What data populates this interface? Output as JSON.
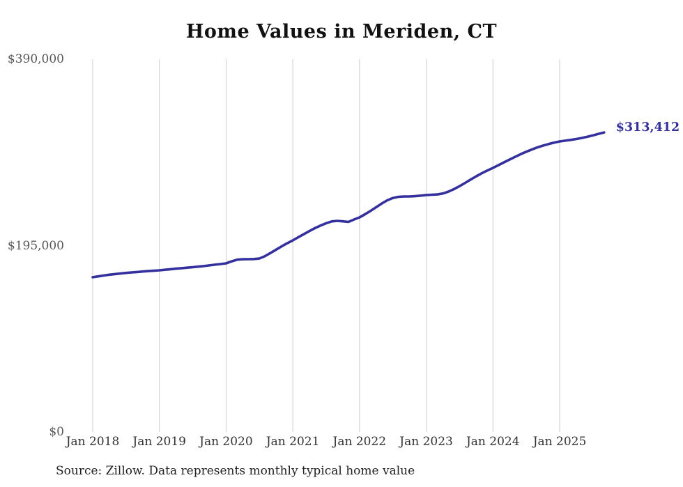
{
  "page": {
    "background": "#ffffff"
  },
  "colors": {
    "line": "#34309D",
    "grid": "#cccccc",
    "title": "#111111",
    "x_axis_text": "#333333",
    "y_axis_text": "#565656",
    "end_label": "#34309D",
    "source_text": "#222222"
  },
  "chart_data": {
    "type": "line",
    "title": "Home Values in Meriden, CT",
    "xlabel": "",
    "ylabel": "",
    "ylim": [
      0,
      390000
    ],
    "grid": "vertical-only",
    "legend": "none",
    "y_ticks": [
      {
        "label": "$390,000",
        "value": 390000
      },
      {
        "label": "$195,000",
        "value": 195000
      },
      {
        "label": "$0",
        "value": 0
      }
    ],
    "x_ticks": [
      {
        "label": "Jan 2018",
        "month_index": 0
      },
      {
        "label": "Jan 2019",
        "month_index": 12
      },
      {
        "label": "Jan 2020",
        "month_index": 24
      },
      {
        "label": "Jan 2021",
        "month_index": 36
      },
      {
        "label": "Jan 2022",
        "month_index": 48
      },
      {
        "label": "Jan 2023",
        "month_index": 60
      },
      {
        "label": "Jan 2024",
        "month_index": 72
      },
      {
        "label": "Jan 2025",
        "month_index": 84
      }
    ],
    "series": [
      {
        "name": "Monthly typical home value",
        "start_month": "Jan 2018",
        "end_month": "Sep 2025",
        "values": [
          161900,
          162800,
          163700,
          164500,
          165200,
          165800,
          166400,
          166900,
          167400,
          167900,
          168300,
          168700,
          169100,
          169700,
          170300,
          170900,
          171400,
          171900,
          172400,
          173000,
          173600,
          174300,
          175000,
          175700,
          176400,
          178500,
          180300,
          180700,
          180800,
          180900,
          181500,
          184000,
          187300,
          190800,
          194200,
          197500,
          200500,
          203800,
          207000,
          210200,
          213300,
          216000,
          218400,
          220300,
          220900,
          220400,
          219800,
          222300,
          224500,
          227800,
          231400,
          235200,
          239000,
          242400,
          244800,
          246000,
          246400,
          246400,
          246700,
          247300,
          247900,
          248200,
          248500,
          249500,
          251500,
          254100,
          257200,
          260600,
          264100,
          267500,
          270700,
          273600,
          276300,
          279200,
          282100,
          285000,
          287900,
          290700,
          293200,
          295500,
          297700,
          299600,
          301200,
          302700,
          304000,
          304800,
          305600,
          306500,
          307600,
          308900,
          310300,
          311900,
          313412
        ]
      }
    ],
    "end_label": "$313,412",
    "source_note": "Source: Zillow. Data represents monthly typical home value"
  }
}
